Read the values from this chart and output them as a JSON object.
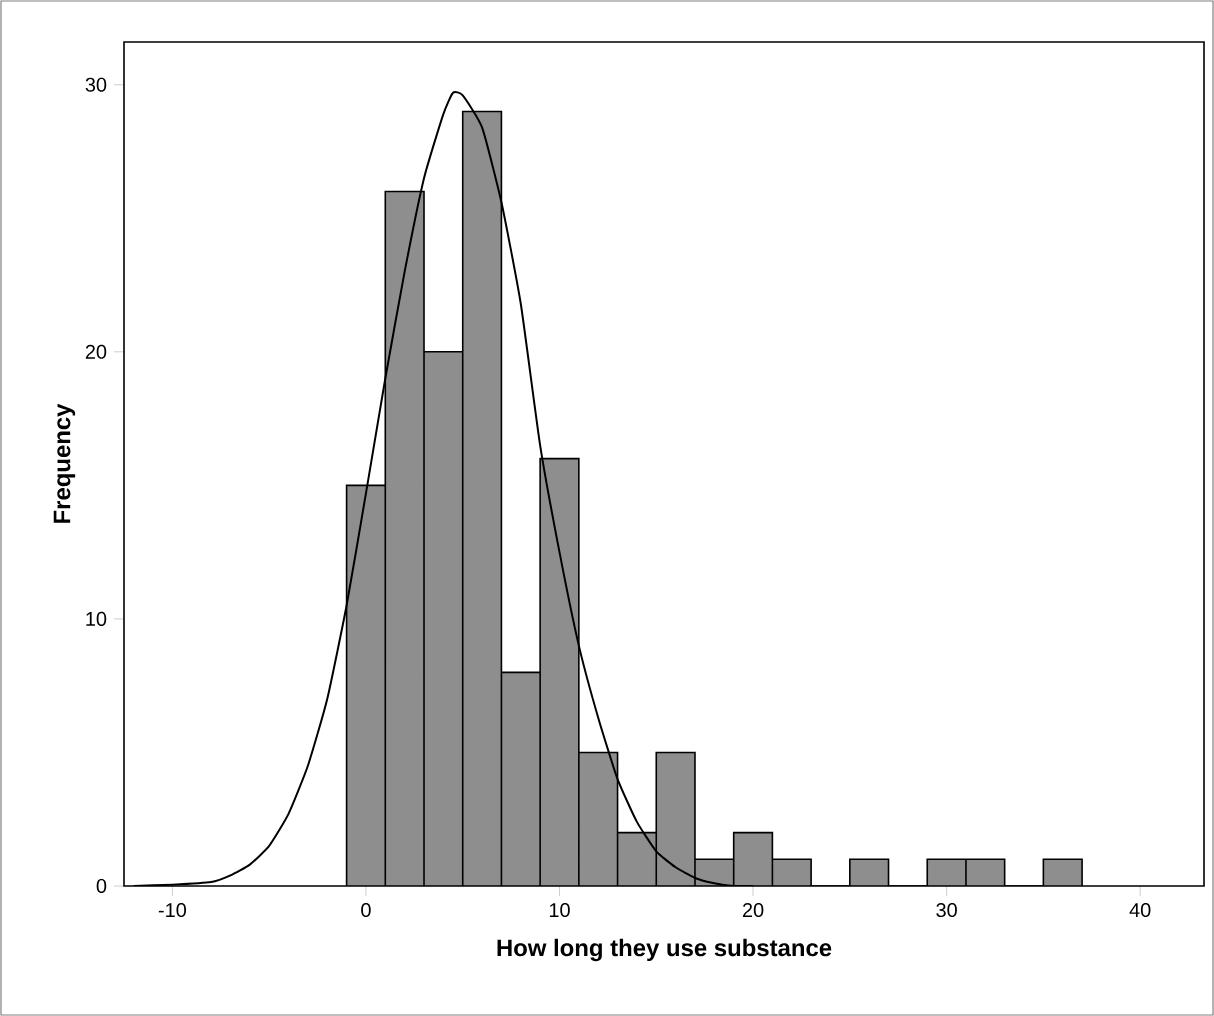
{
  "chart_data": {
    "type": "histogram",
    "xlabel": "How long they use substance",
    "ylabel": "Frequency",
    "bins": [
      -1,
      1,
      3,
      5,
      7,
      9,
      11,
      13,
      15,
      17,
      19,
      21,
      23,
      25,
      27,
      29,
      31,
      33,
      35,
      37
    ],
    "values": [
      15,
      26,
      20,
      29,
      8,
      16,
      5,
      2,
      5,
      1,
      2,
      1,
      0,
      1,
      0,
      1,
      1,
      0,
      1
    ],
    "color": "#8e8e8e",
    "series": [
      {
        "type": "line",
        "color": "#000000",
        "x": [
          -12,
          -10,
          -8,
          -7,
          -6,
          -5,
          -4,
          -3,
          -2,
          -1,
          0,
          1,
          2,
          3,
          4,
          4.5,
          5,
          6,
          7,
          8,
          9,
          10,
          11,
          12,
          13,
          14,
          15,
          16,
          17,
          18,
          19,
          20
        ],
        "values": [
          0,
          0.05,
          0.15,
          0.4,
          0.8,
          1.5,
          2.7,
          4.5,
          7,
          10.5,
          14.7,
          19,
          23,
          26.5,
          28.9,
          29.7,
          29.6,
          28.4,
          25.6,
          21.8,
          16.5,
          12.5,
          9,
          6.3,
          4,
          2.4,
          1.3,
          0.7,
          0.3,
          0.1,
          0,
          0
        ]
      }
    ],
    "xlim": [
      -12.5,
      43.3
    ],
    "ylim": [
      0,
      31.6
    ],
    "xticks": [
      -10,
      0,
      10,
      20,
      30,
      40
    ],
    "yticks": [
      0,
      10,
      20,
      30
    ],
    "grid": false
  }
}
